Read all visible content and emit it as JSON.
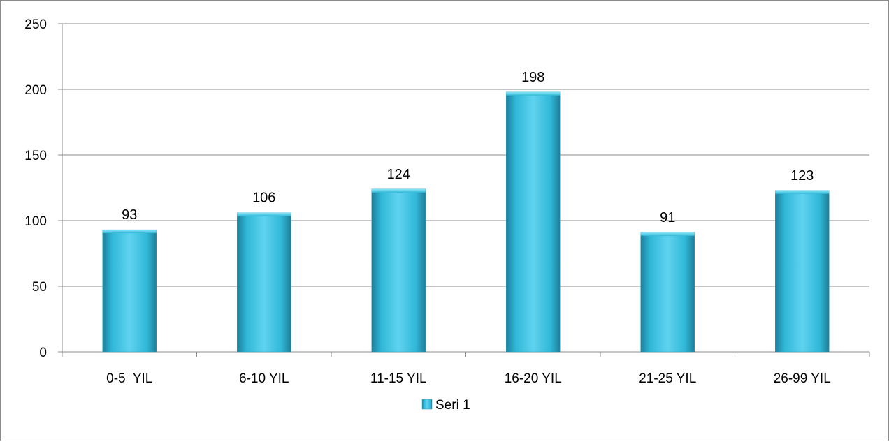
{
  "chart_data": {
    "type": "bar",
    "categories": [
      "0-5  YIL",
      "6-10 YIL",
      "11-15 YIL",
      "16-20 YIL",
      "21-25 YIL",
      "26-99 YIL"
    ],
    "series": [
      {
        "name": "Seri 1",
        "values": [
          93,
          106,
          124,
          198,
          91,
          123
        ]
      }
    ],
    "title": "",
    "xlabel": "",
    "ylabel": "",
    "ylim": [
      0,
      250
    ],
    "yticks": [
      0,
      50,
      100,
      150,
      200,
      250
    ],
    "grid": true,
    "legend_position": "bottom",
    "data_labels": true,
    "colors": {
      "bar_light": "#5fd3f0",
      "bar_mid": "#31b8d8",
      "bar_dark": "#1d7f9a",
      "bar_top": "#8be6f8",
      "grid": "#8c8c8c",
      "axis": "#8c8c8c",
      "frame": "#8c8c8c"
    }
  }
}
